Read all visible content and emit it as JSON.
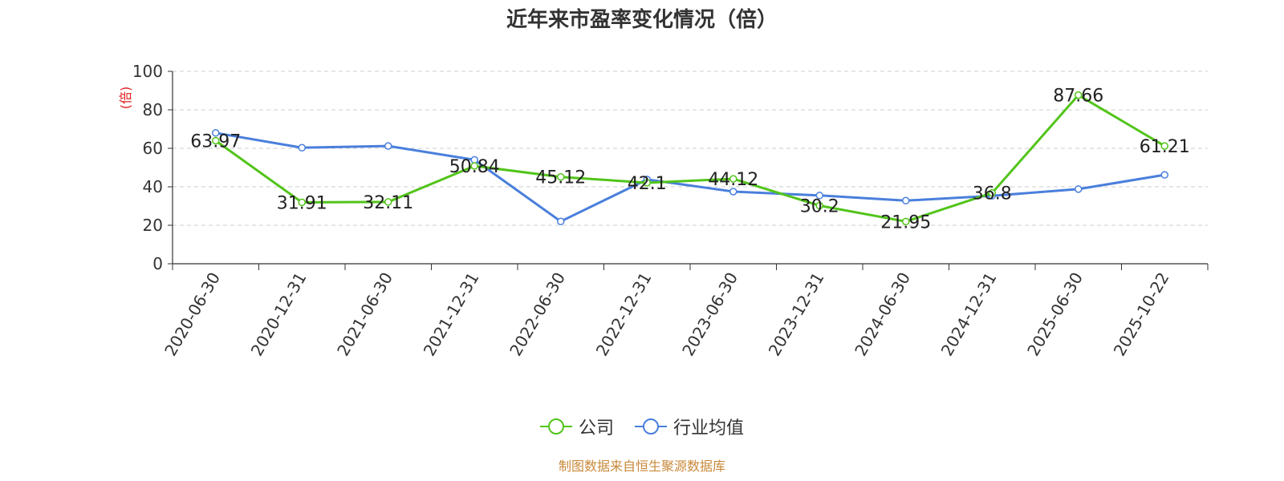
{
  "title": "近年来市盈率变化情况（倍）",
  "source": "制图数据来自恒生聚源数据库",
  "colors": {
    "company": "#52c41a",
    "industry": "#4a7fdc",
    "ylabel": "#e02020"
  },
  "chart_data": {
    "type": "line",
    "title": "近年来市盈率变化情况（倍）",
    "ylabel": "(倍)",
    "xlabel": "",
    "ylim": [
      0,
      100
    ],
    "yticks": [
      0,
      20,
      40,
      60,
      80,
      100
    ],
    "grid": true,
    "legend_position": "bottom",
    "categories": [
      "2020-06-30",
      "2020-12-31",
      "2021-06-30",
      "2021-12-31",
      "2022-06-30",
      "2022-12-31",
      "2023-06-30",
      "2023-12-31",
      "2024-06-30",
      "2024-12-31",
      "2025-06-30",
      "2025-10-22"
    ],
    "series": [
      {
        "name": "公司",
        "color": "#52c41a",
        "values": [
          63.97,
          31.91,
          32.11,
          50.84,
          45.12,
          42.1,
          44.12,
          30.2,
          21.95,
          36.8,
          87.66,
          61.21
        ],
        "labels": [
          "63.97",
          "31.91",
          "32.11",
          "50.84",
          "45.12",
          "42.1",
          "44.12",
          "30.2",
          "21.95",
          "36.8",
          "87.66",
          "61.21"
        ]
      },
      {
        "name": "行业均值",
        "color": "#4a7fdc",
        "values": [
          68,
          60.3,
          61.2,
          54,
          22,
          43.8,
          37.5,
          35.5,
          32.8,
          35.3,
          38.8,
          46.2
        ]
      }
    ]
  }
}
